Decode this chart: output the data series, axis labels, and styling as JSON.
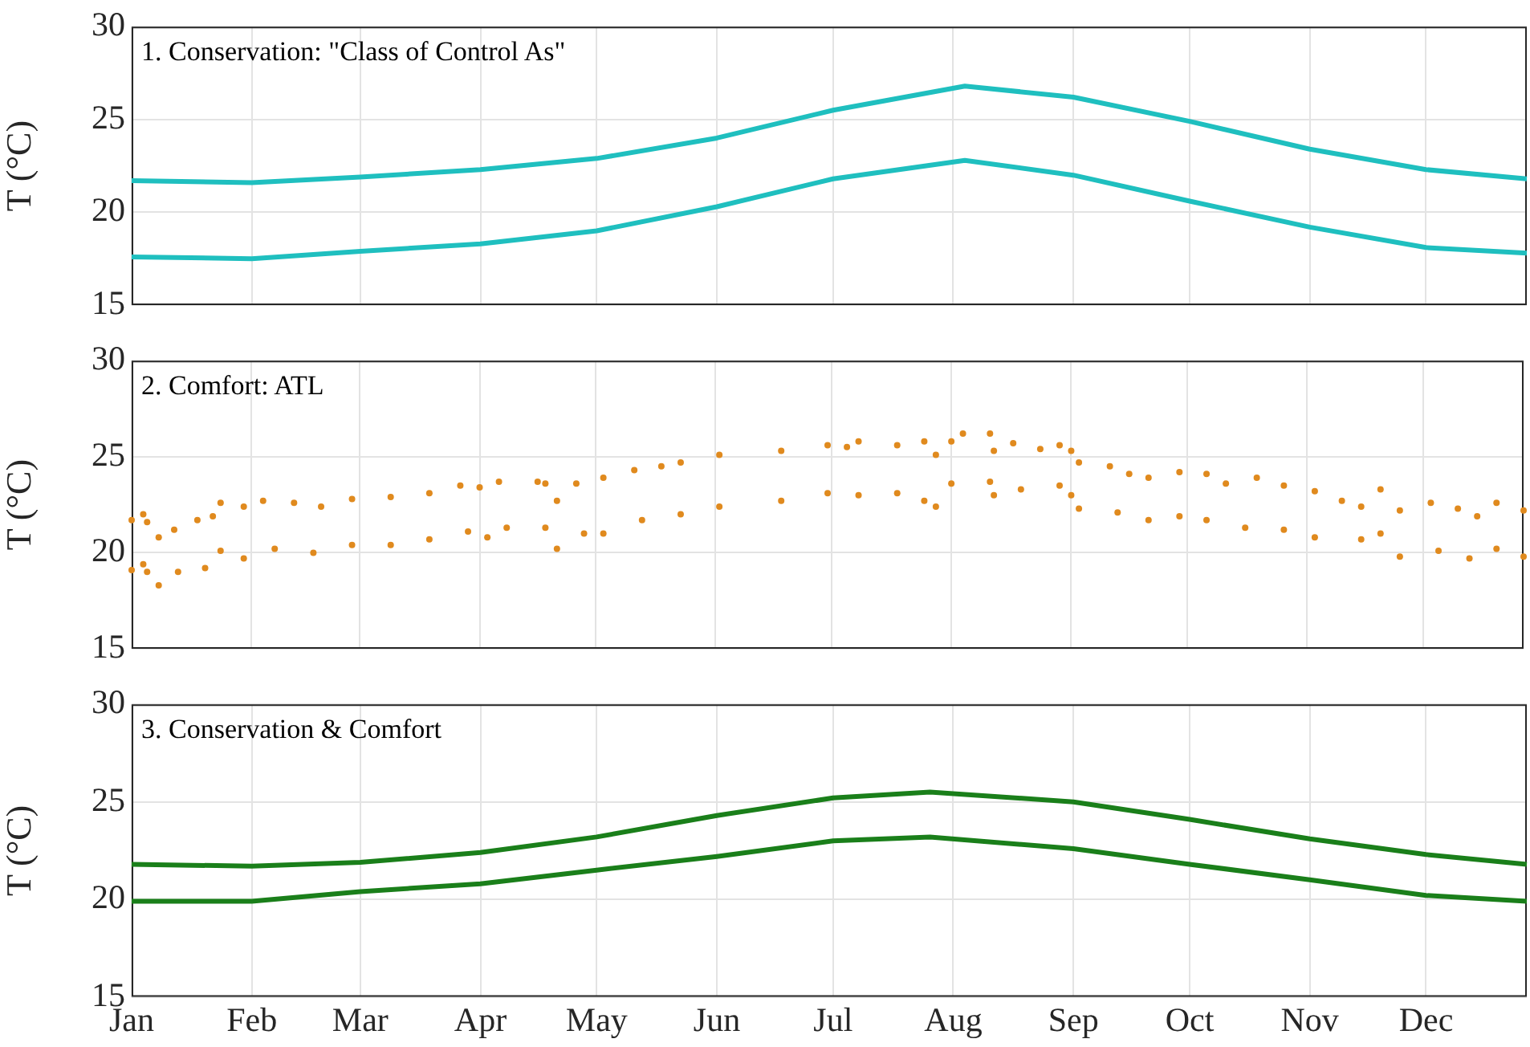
{
  "chart_data": [
    {
      "type": "line",
      "title": "1. Conservation: \"Class of Control As\"",
      "ylabel": "T (°C)",
      "x": [
        "--01-01",
        "--02-01",
        "--03-01",
        "--04-01",
        "--05-01",
        "--06-01",
        "--07-01",
        "--08-04",
        "--09-01",
        "--10-01",
        "--11-01",
        "--12-01",
        "--12-27"
      ],
      "xlim": [
        "--01-01",
        "--12-27"
      ],
      "xticks": [
        {
          "value": "--01-01",
          "label": null
        },
        {
          "value": "--02-01",
          "label": null
        },
        {
          "value": "--03-01",
          "label": null
        },
        {
          "value": "--04-01",
          "label": null
        },
        {
          "value": "--05-01",
          "label": null
        },
        {
          "value": "--06-01",
          "label": null
        },
        {
          "value": "--07-01",
          "label": null
        },
        {
          "value": "--08-01",
          "label": null
        },
        {
          "value": "--09-01",
          "label": null
        },
        {
          "value": "--10-01",
          "label": null
        },
        {
          "value": "--11-01",
          "label": null
        },
        {
          "value": "--12-01",
          "label": null
        }
      ],
      "ylim": [
        15,
        30
      ],
      "yticks": [
        15,
        20,
        25,
        30
      ],
      "grid": true,
      "tick_labels": "y",
      "series": [
        {
          "color": "#1fbfbf",
          "values": [
            21.7,
            21.6,
            21.9,
            22.3,
            22.9,
            24.0,
            25.5,
            26.8,
            26.2,
            24.9,
            23.4,
            22.3,
            21.8
          ]
        },
        {
          "color": "#1fbfbf",
          "values": [
            17.6,
            17.5,
            17.9,
            18.3,
            19.0,
            20.3,
            21.8,
            22.8,
            22.0,
            20.6,
            19.2,
            18.1,
            17.8
          ]
        }
      ]
    },
    {
      "type": "scatter",
      "title": "2. Comfort: ATL",
      "ylabel": "T (°C)",
      "xlim": [
        "--01-01",
        "--12-27"
      ],
      "xticks": [
        {
          "value": "--01-01",
          "label": null
        },
        {
          "value": "--02-01",
          "label": null
        },
        {
          "value": "--03-01",
          "label": null
        },
        {
          "value": "--04-01",
          "label": null
        },
        {
          "value": "--05-01",
          "label": null
        },
        {
          "value": "--06-01",
          "label": null
        },
        {
          "value": "--07-01",
          "label": null
        },
        {
          "value": "--08-01",
          "label": null
        },
        {
          "value": "--09-01",
          "label": null
        },
        {
          "value": "--10-01",
          "label": null
        },
        {
          "value": "--11-01",
          "label": null
        },
        {
          "value": "--12-01",
          "label": null
        }
      ],
      "ylim": [
        15,
        30
      ],
      "yticks": [
        15,
        20,
        25,
        30
      ],
      "grid": true,
      "tick_labels": "y",
      "marker": "circle",
      "series": [
        {
          "color": "#e08a1e",
          "x": [
            "--01-01",
            "--01-04",
            "--01-05",
            "--01-08",
            "--01-12",
            "--01-18",
            "--01-22",
            "--01-24",
            "--01-30",
            "--02-04",
            "--02-12",
            "--02-19",
            "--02-27",
            "--03-09",
            "--03-19",
            "--03-27",
            "--04-01",
            "--04-06",
            "--04-16",
            "--04-18",
            "--04-21",
            "--04-26",
            "--05-03",
            "--05-11",
            "--05-18",
            "--05-23",
            "--06-02",
            "--06-18",
            "--06-30",
            "--07-05",
            "--07-08",
            "--07-18",
            "--07-25",
            "--07-28",
            "--08-01",
            "--08-04",
            "--08-11",
            "--08-12",
            "--08-17",
            "--08-24",
            "--08-29",
            "--09-01",
            "--09-03",
            "--09-11",
            "--09-16",
            "--09-21",
            "--09-29",
            "--10-06",
            "--10-11",
            "--10-19",
            "--10-26",
            "--11-03",
            "--11-10",
            "--11-15",
            "--11-20",
            "--11-25",
            "--12-03",
            "--12-10",
            "--12-15",
            "--12-20",
            "--12-27"
          ],
          "values": [
            21.7,
            22.0,
            21.6,
            20.8,
            21.2,
            21.7,
            21.9,
            22.6,
            22.4,
            22.7,
            22.6,
            22.4,
            22.8,
            22.9,
            23.1,
            23.5,
            23.4,
            23.7,
            23.7,
            23.6,
            22.7,
            23.6,
            23.9,
            24.3,
            24.5,
            24.7,
            25.1,
            25.3,
            25.6,
            25.5,
            25.8,
            25.6,
            25.8,
            25.1,
            25.8,
            26.2,
            26.2,
            25.3,
            25.7,
            25.4,
            25.6,
            25.3,
            24.7,
            24.5,
            24.1,
            23.9,
            24.2,
            24.1,
            23.6,
            23.9,
            23.5,
            23.2,
            22.7,
            22.4,
            23.3,
            22.2,
            22.6,
            22.3,
            21.9,
            22.6,
            22.2
          ]
        },
        {
          "color": "#e08a1e",
          "x": [
            "--01-01",
            "--01-04",
            "--01-05",
            "--01-08",
            "--01-13",
            "--01-20",
            "--01-24",
            "--01-30",
            "--02-07",
            "--02-17",
            "--02-27",
            "--03-09",
            "--03-19",
            "--03-29",
            "--04-03",
            "--04-08",
            "--04-18",
            "--04-21",
            "--04-28",
            "--05-03",
            "--05-13",
            "--05-23",
            "--06-02",
            "--06-18",
            "--06-30",
            "--07-08",
            "--07-18",
            "--07-25",
            "--07-28",
            "--08-01",
            "--08-11",
            "--08-12",
            "--08-19",
            "--08-29",
            "--09-01",
            "--09-03",
            "--09-13",
            "--09-21",
            "--09-29",
            "--10-06",
            "--10-16",
            "--10-26",
            "--11-03",
            "--11-15",
            "--11-20",
            "--11-25",
            "--12-05",
            "--12-13",
            "--12-20",
            "--12-27"
          ],
          "values": [
            19.1,
            19.4,
            19.0,
            18.3,
            19.0,
            19.2,
            20.1,
            19.7,
            20.2,
            20.0,
            20.4,
            20.4,
            20.7,
            21.1,
            20.8,
            21.3,
            21.3,
            20.2,
            21.0,
            21.0,
            21.7,
            22.0,
            22.4,
            22.7,
            23.1,
            23.0,
            23.1,
            22.7,
            22.4,
            23.6,
            23.7,
            23.0,
            23.3,
            23.5,
            23.0,
            22.3,
            22.1,
            21.7,
            21.9,
            21.7,
            21.3,
            21.2,
            20.8,
            20.7,
            21.0,
            19.8,
            20.1,
            19.7,
            20.2,
            19.8
          ]
        }
      ]
    },
    {
      "type": "line",
      "title": "3. Conservation & Comfort",
      "ylabel": "T (°C)",
      "x": [
        "--01-01",
        "--02-01",
        "--03-01",
        "--04-01",
        "--05-01",
        "--06-01",
        "--07-01",
        "--07-26",
        "--09-01",
        "--10-01",
        "--11-01",
        "--12-01",
        "--12-27"
      ],
      "xlim": [
        "--01-01",
        "--12-27"
      ],
      "xticks": [
        {
          "value": "--01-01",
          "label": "Jan"
        },
        {
          "value": "--02-01",
          "label": "Feb"
        },
        {
          "value": "--03-01",
          "label": "Mar"
        },
        {
          "value": "--04-01",
          "label": "Apr"
        },
        {
          "value": "--05-01",
          "label": "May"
        },
        {
          "value": "--06-01",
          "label": "Jun"
        },
        {
          "value": "--07-01",
          "label": "Jul"
        },
        {
          "value": "--08-01",
          "label": "Aug"
        },
        {
          "value": "--09-01",
          "label": "Sep"
        },
        {
          "value": "--10-01",
          "label": "Oct"
        },
        {
          "value": "--11-01",
          "label": "Nov"
        },
        {
          "value": "--12-01",
          "label": "Dec"
        }
      ],
      "ylim": [
        15,
        30
      ],
      "yticks": [
        15,
        20,
        25,
        30
      ],
      "grid": true,
      "series": [
        {
          "color": "#1a7f1a",
          "values": [
            21.8,
            21.7,
            21.9,
            22.4,
            23.2,
            24.3,
            25.2,
            25.5,
            25.0,
            24.1,
            23.1,
            22.3,
            21.8
          ]
        },
        {
          "color": "#1a7f1a",
          "values": [
            19.9,
            19.9,
            20.4,
            20.8,
            21.5,
            22.2,
            23.0,
            23.2,
            22.6,
            21.8,
            21.0,
            20.2,
            19.9
          ]
        }
      ]
    }
  ]
}
